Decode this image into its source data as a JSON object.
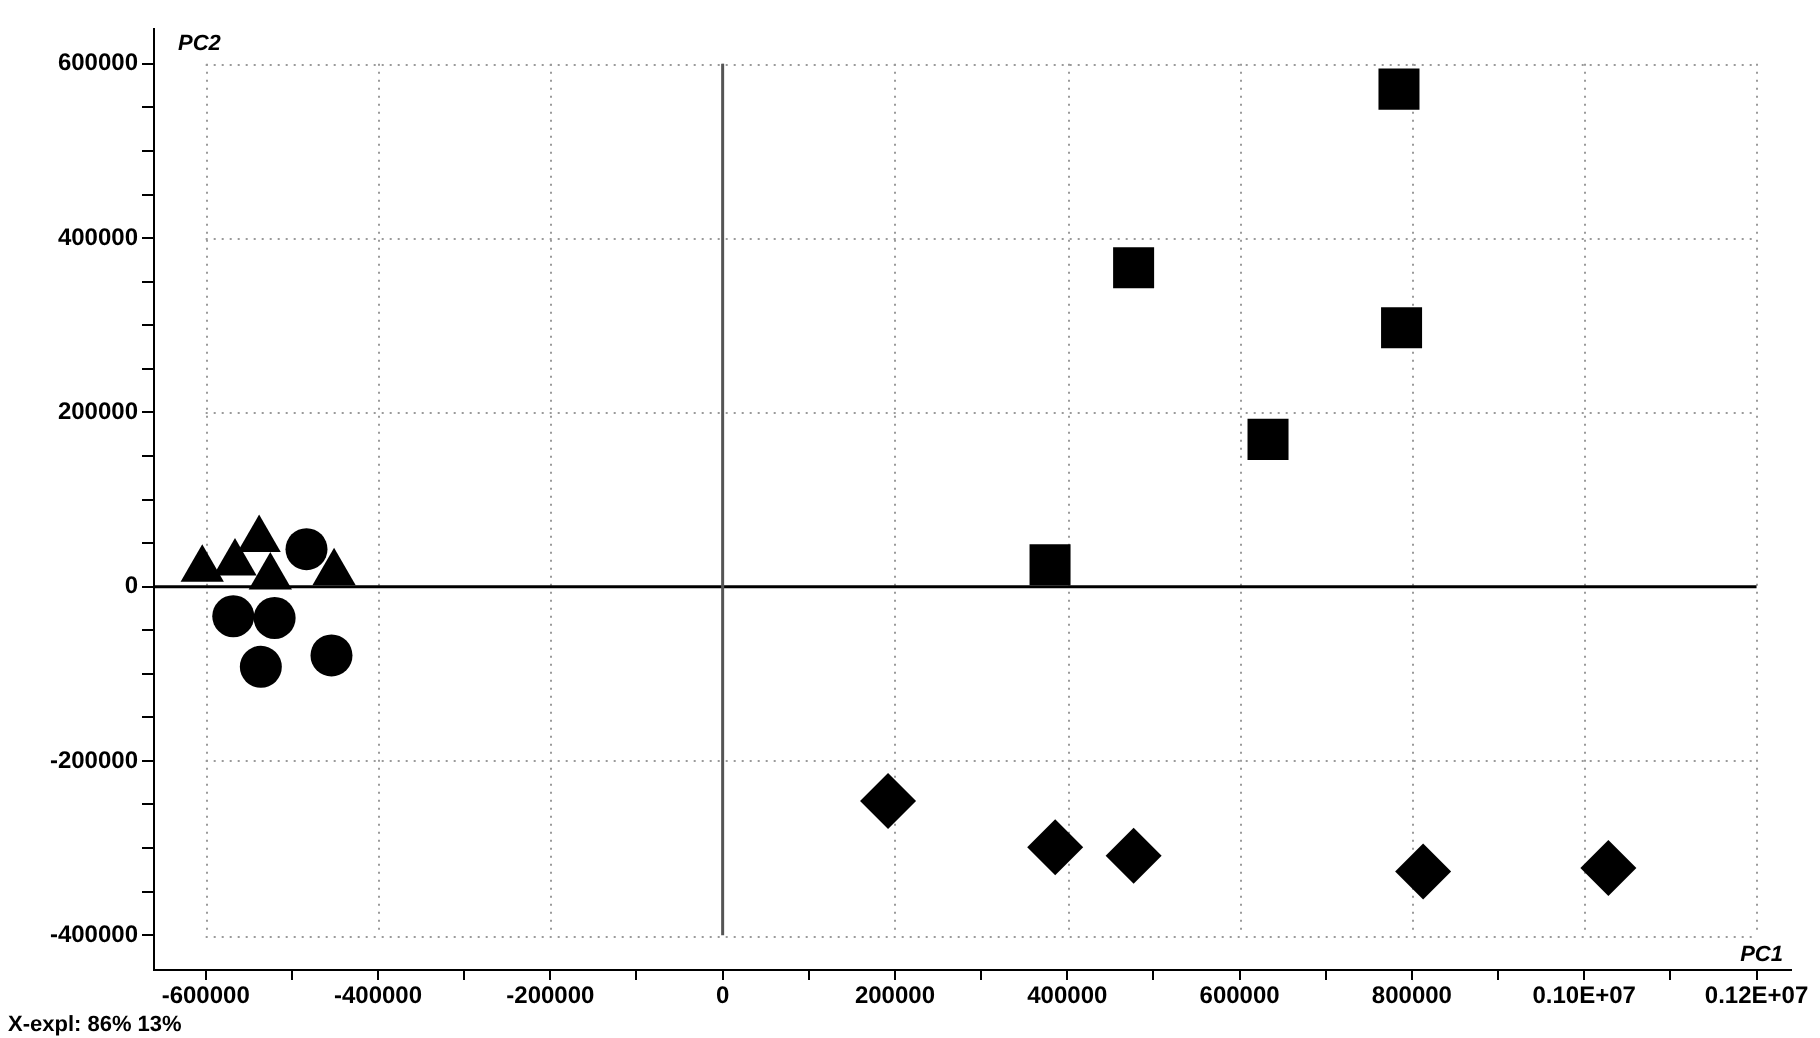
{
  "chart_data": {
    "type": "scatter",
    "xlabel": "PC1",
    "ylabel": "PC2",
    "annotations": [
      "X-expl: 86% 13%"
    ],
    "series": [
      {
        "color": "#000000",
        "marker": "triangle",
        "x": [
          -604000,
          -566000,
          -538000,
          -525000,
          -451000
        ],
        "values": [
          20000,
          27000,
          54000,
          11000,
          16000
        ]
      },
      {
        "color": "#000000",
        "marker": "circle",
        "x": [
          -483000,
          -568000,
          -520000,
          -536000,
          -454000
        ],
        "values": [
          43000,
          -34000,
          -36000,
          -92000,
          -79000
        ]
      },
      {
        "color": "#000000",
        "marker": "square",
        "x": [
          785000,
          477000,
          788000,
          633000,
          380000
        ],
        "values": [
          571000,
          366000,
          297000,
          169000,
          25000
        ]
      },
      {
        "color": "#000000",
        "marker": "diamond",
        "x": [
          192000,
          386000,
          477000,
          813000,
          1028000
        ],
        "values": [
          -246000,
          -299000,
          -309000,
          -327000,
          -323000
        ]
      }
    ],
    "xlim": [
      -660000,
      1240000
    ],
    "xticks": [
      -600000,
      {
        "value": -500000,
        "label": null
      },
      -400000,
      {
        "value": -300000,
        "label": null
      },
      -200000,
      {
        "value": -100000,
        "label": null
      },
      0,
      {
        "value": 100000,
        "label": null
      },
      200000,
      {
        "value": 300000,
        "label": null
      },
      400000,
      {
        "value": 500000,
        "label": null
      },
      600000,
      {
        "value": 700000,
        "label": null
      },
      800000,
      {
        "value": 900000,
        "label": null
      },
      {
        "value": 1000000,
        "label": "0.10E+07"
      },
      {
        "value": 1100000,
        "label": null
      },
      {
        "value": 1200000,
        "label": "0.12E+07"
      }
    ],
    "ylim": [
      -440000,
      640000
    ],
    "yticks": [
      -400000,
      {
        "value": -350000,
        "label": null
      },
      {
        "value": -300000,
        "label": null
      },
      {
        "value": -250000,
        "label": null
      },
      -200000,
      {
        "value": -150000,
        "label": null
      },
      {
        "value": -100000,
        "label": null
      },
      {
        "value": -50000,
        "label": null
      },
      0,
      {
        "value": 50000,
        "label": null
      },
      {
        "value": 100000,
        "label": null
      },
      {
        "value": 150000,
        "label": null
      },
      200000,
      {
        "value": 250000,
        "label": null
      },
      {
        "value": 300000,
        "label": null
      },
      {
        "value": 350000,
        "label": null
      },
      400000,
      {
        "value": 450000,
        "label": null
      },
      {
        "value": 500000,
        "label": null
      },
      {
        "value": 550000,
        "label": null
      },
      600000
    ],
    "grid": true,
    "legend": false,
    "ref_lines": [
      {
        "axis": "y",
        "value": 0,
        "color": "#000000"
      },
      {
        "axis": "x",
        "value": 0,
        "color": "#555555"
      }
    ]
  }
}
